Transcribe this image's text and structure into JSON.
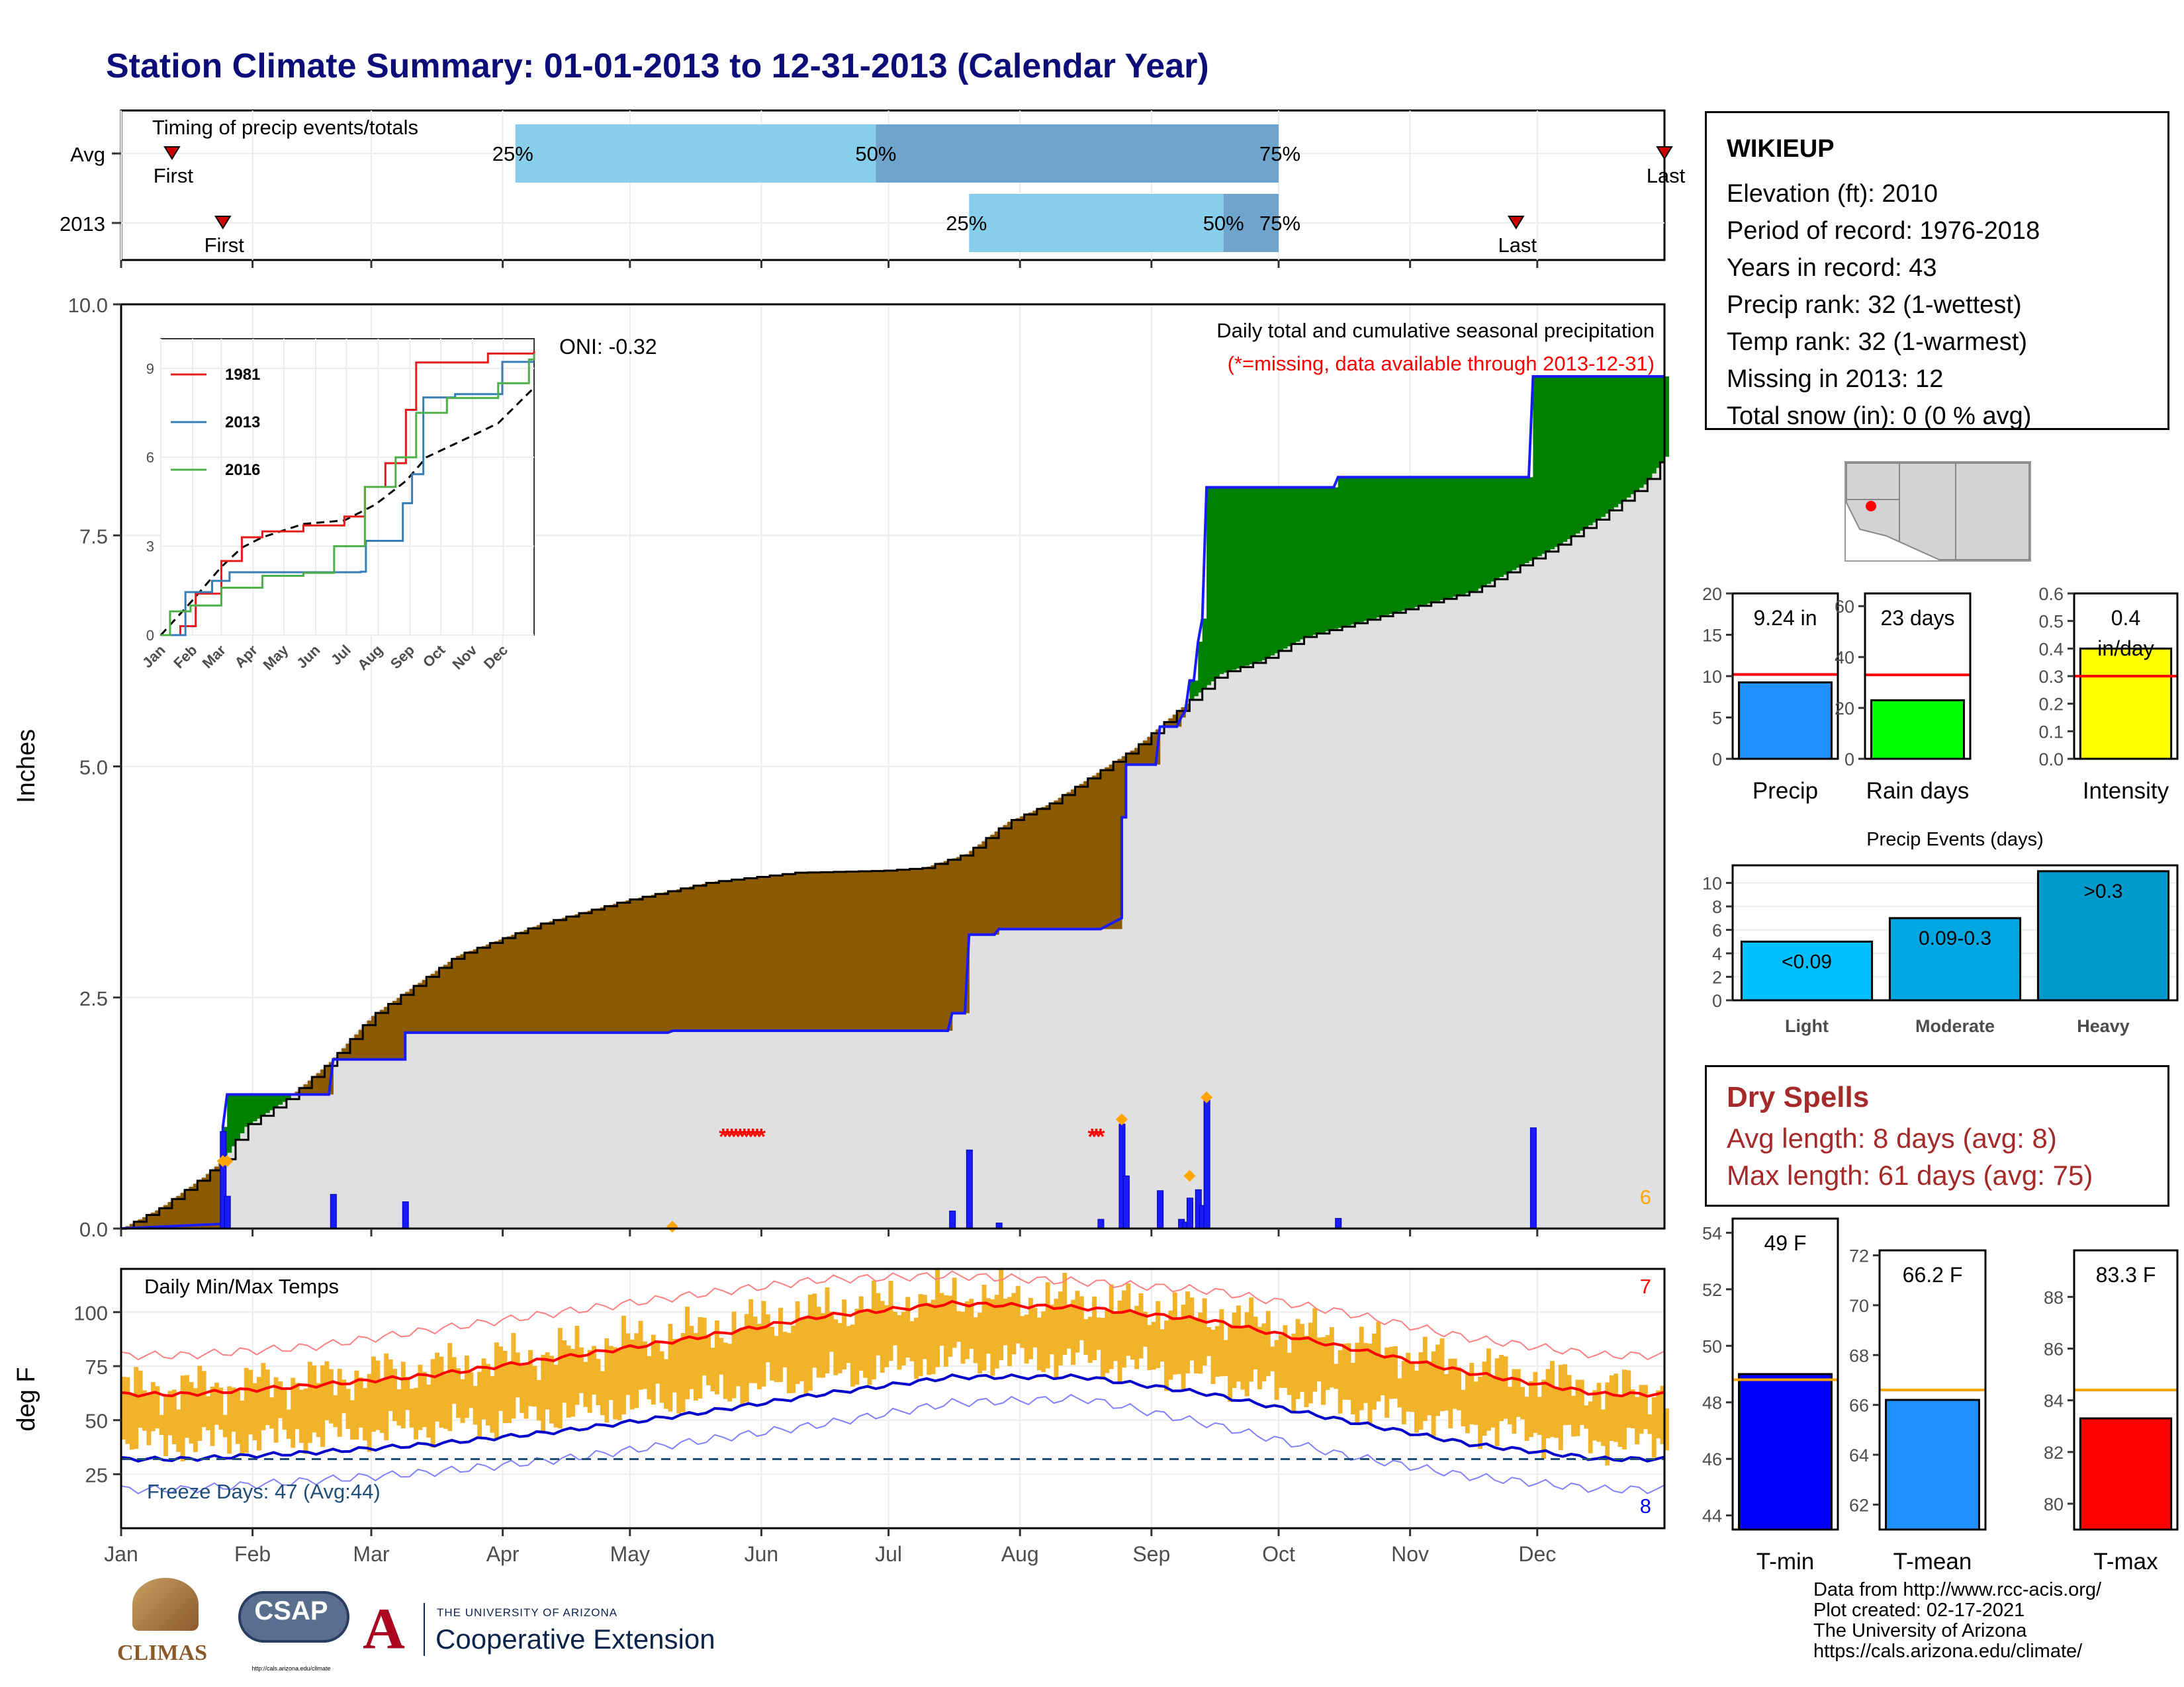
{
  "title": "Station Climate Summary: 01-01-2013 to 12-31-2013 (Calendar Year)",
  "colors": {
    "title": "#0d0d7a",
    "precip_blue": "#1a1aff",
    "green": "#008000",
    "brown": "#8b5a00",
    "normal_gray": "#e0e0e0",
    "light_blue": "#87ceeb",
    "steel_blue": "#6fa5cc",
    "temp_bar": "#f0b32a",
    "avg_max": "#ff0000",
    "avg_min": "#0000cc"
  },
  "station": {
    "name": "WIKIEUP",
    "lines": [
      "Elevation (ft): 2010",
      "Period of record: 1976-2018",
      "Years in record: 43",
      "Precip rank: 32 (1-wettest)",
      "Temp rank: 32 (1-warmest)",
      "Missing in 2013: 12",
      "Total snow (in): 0 (0 % avg)"
    ]
  },
  "timing": {
    "title": "Timing of precip events/totals",
    "rows": [
      {
        "label": "Avg",
        "first_doy": 13,
        "p25_doy": 94,
        "p50_doy": 179,
        "p75_doy": 274,
        "last_doy": 365,
        "first_label": "First",
        "last_label": "Last",
        "p25_label": "25%",
        "p50_label": "50%",
        "p75_label": "75%"
      },
      {
        "label": "2013",
        "first_doy": 25,
        "p25_doy": 201,
        "p50_doy": 261,
        "p75_doy": 274,
        "last_doy": 330,
        "first_label": "First",
        "last_label": "Last",
        "p25_label": "25%",
        "p50_label": "50%",
        "p75_label": "75%"
      }
    ]
  },
  "chart_data": [
    {
      "type": "area",
      "title": "Daily total and cumulative seasonal precipitation",
      "subtitle": "(*=missing, data available through 2013-12-31)",
      "ylabel": "Inches",
      "ylim": [
        0,
        10
      ],
      "yticks": [
        0.0,
        2.5,
        5.0,
        7.5,
        10.0
      ],
      "ytick_labels": [
        "0.0",
        "2.5",
        "5.0",
        "7.5",
        "10.0"
      ],
      "oni_label": "ONI: -0.32",
      "corner_count": "6",
      "months": [
        "Jan",
        "Feb",
        "Mar",
        "Apr",
        "May",
        "Jun",
        "Jul",
        "Aug",
        "Sep",
        "Oct",
        "Nov",
        "Dec"
      ],
      "cumulative_2013": [
        [
          1,
          0
        ],
        [
          25,
          0.05
        ],
        [
          25,
          1.1
        ],
        [
          26,
          1.45
        ],
        [
          50,
          1.45
        ],
        [
          51,
          1.83
        ],
        [
          68,
          1.83
        ],
        [
          68,
          2.12
        ],
        [
          130,
          2.12
        ],
        [
          131,
          2.14
        ],
        [
          196,
          2.14
        ],
        [
          197,
          2.33
        ],
        [
          200,
          2.33
        ],
        [
          201,
          3.18
        ],
        [
          207,
          3.18
        ],
        [
          208,
          3.24
        ],
        [
          232,
          3.24
        ],
        [
          237,
          3.36
        ],
        [
          237,
          4.45
        ],
        [
          238,
          4.45
        ],
        [
          238,
          5.02
        ],
        [
          245,
          5.02
        ],
        [
          246,
          5.43
        ],
        [
          250,
          5.43
        ],
        [
          251,
          5.53
        ],
        [
          252,
          5.6
        ],
        [
          253,
          5.93
        ],
        [
          254,
          5.93
        ],
        [
          255,
          6.35
        ],
        [
          256,
          6.6
        ],
        [
          257,
          8.02
        ],
        [
          287,
          8.02
        ],
        [
          288,
          8.13
        ],
        [
          333,
          8.13
        ],
        [
          334,
          9.22
        ],
        [
          365,
          9.22
        ]
      ],
      "cumulative_avg": [
        [
          1,
          0
        ],
        [
          10,
          0.22
        ],
        [
          20,
          0.55
        ],
        [
          25,
          0.75
        ],
        [
          30,
          1.1
        ],
        [
          40,
          1.4
        ],
        [
          50,
          1.8
        ],
        [
          60,
          2.3
        ],
        [
          80,
          2.95
        ],
        [
          100,
          3.3
        ],
        [
          120,
          3.55
        ],
        [
          140,
          3.75
        ],
        [
          160,
          3.85
        ],
        [
          180,
          3.87
        ],
        [
          190,
          3.9
        ],
        [
          200,
          4.05
        ],
        [
          210,
          4.4
        ],
        [
          220,
          4.6
        ],
        [
          230,
          4.9
        ],
        [
          240,
          5.2
        ],
        [
          250,
          5.6
        ],
        [
          260,
          6.0
        ],
        [
          270,
          6.15
        ],
        [
          280,
          6.4
        ],
        [
          300,
          6.65
        ],
        [
          320,
          6.9
        ],
        [
          330,
          7.15
        ],
        [
          340,
          7.4
        ],
        [
          350,
          7.7
        ],
        [
          360,
          8.05
        ],
        [
          365,
          8.35
        ]
      ],
      "daily_2013": [
        [
          25,
          1.05
        ],
        [
          26,
          0.35
        ],
        [
          51,
          0.37
        ],
        [
          68,
          0.29
        ],
        [
          131,
          0.02
        ],
        [
          197,
          0.19
        ],
        [
          201,
          0.85
        ],
        [
          208,
          0.06
        ],
        [
          232,
          0.1
        ],
        [
          237,
          1.13
        ],
        [
          238,
          0.57
        ],
        [
          246,
          0.41
        ],
        [
          251,
          0.1
        ],
        [
          252,
          0.07
        ],
        [
          253,
          0.33
        ],
        [
          255,
          0.42
        ],
        [
          256,
          0.25
        ],
        [
          257,
          1.42
        ],
        [
          288,
          0.11
        ],
        [
          334,
          1.09
        ]
      ],
      "missing_markers": [
        [
          143,
          1.0
        ],
        [
          144,
          1.0
        ],
        [
          145,
          1.0
        ],
        [
          146,
          1.0
        ],
        [
          147,
          1.0
        ],
        [
          148,
          1.0
        ],
        [
          149,
          1.0
        ],
        [
          150,
          1.0
        ],
        [
          151,
          1.0
        ],
        [
          152,
          1.0
        ],
        [
          230,
          1.0
        ],
        [
          231,
          1.0
        ],
        [
          232,
          1.0
        ]
      ],
      "orange_markers": [
        [
          25,
          0.73
        ],
        [
          26,
          0.73
        ],
        [
          131,
          0.02
        ],
        [
          237,
          1.18
        ],
        [
          253,
          0.57
        ],
        [
          257,
          1.42
        ]
      ]
    },
    {
      "type": "line",
      "title": "",
      "xlim": [
        "Jan",
        "Dec"
      ],
      "ylim": [
        0,
        10
      ],
      "yticks": [
        0,
        3,
        6,
        9
      ],
      "ytick_labels": [
        "0",
        "3",
        "6",
        "9"
      ],
      "months": [
        "Jan",
        "Feb",
        "Mar",
        "Apr",
        "May",
        "Jun",
        "Jul",
        "Aug",
        "Sep",
        "Oct",
        "Nov",
        "Dec"
      ],
      "series": [
        {
          "name": "1981",
          "color": "#e41a1c",
          "values": [
            [
              1,
              0
            ],
            [
              20,
              0.3
            ],
            [
              35,
              1.4
            ],
            [
              60,
              2.5
            ],
            [
              80,
              3.3
            ],
            [
              100,
              3.5
            ],
            [
              140,
              3.7
            ],
            [
              180,
              4.0
            ],
            [
              200,
              5.0
            ],
            [
              220,
              5.8
            ],
            [
              240,
              7.6
            ],
            [
              250,
              9.2
            ],
            [
              300,
              9.2
            ],
            [
              320,
              9.5
            ],
            [
              365,
              9.6
            ]
          ]
        },
        {
          "name": "2013",
          "color": "#377eb8",
          "values": [
            [
              1,
              0
            ],
            [
              25,
              1.45
            ],
            [
              51,
              1.83
            ],
            [
              68,
              2.12
            ],
            [
              196,
              2.14
            ],
            [
              201,
              3.18
            ],
            [
              237,
              4.45
            ],
            [
              246,
              5.43
            ],
            [
              257,
              8.02
            ],
            [
              288,
              8.13
            ],
            [
              334,
              9.22
            ],
            [
              365,
              9.22
            ]
          ]
        },
        {
          "name": "2016",
          "color": "#4daf4a",
          "values": [
            [
              1,
              0
            ],
            [
              10,
              0.8
            ],
            [
              30,
              1.0
            ],
            [
              60,
              1.6
            ],
            [
              100,
              2.0
            ],
            [
              140,
              2.1
            ],
            [
              170,
              3.0
            ],
            [
              200,
              5.0
            ],
            [
              230,
              6.0
            ],
            [
              250,
              7.5
            ],
            [
              280,
              8.0
            ],
            [
              330,
              8.5
            ],
            [
              360,
              9.3
            ],
            [
              365,
              9.5
            ]
          ]
        }
      ],
      "avg_line": [
        [
          1,
          0
        ],
        [
          30,
          1.1
        ],
        [
          60,
          2.3
        ],
        [
          80,
          2.95
        ],
        [
          100,
          3.3
        ],
        [
          140,
          3.75
        ],
        [
          180,
          3.87
        ],
        [
          210,
          4.4
        ],
        [
          240,
          5.2
        ],
        [
          260,
          6.0
        ],
        [
          300,
          6.65
        ],
        [
          330,
          7.15
        ],
        [
          365,
          8.35
        ]
      ]
    },
    {
      "type": "bar",
      "title": "Daily Min/Max Temps",
      "ylabel": "deg F",
      "ylim": [
        0,
        120
      ],
      "yticks": [
        25,
        50,
        75,
        100
      ],
      "ytick_labels": [
        "25",
        "50",
        "75",
        "100"
      ],
      "months": [
        "Jan",
        "Feb",
        "Mar",
        "Apr",
        "May",
        "Jun",
        "Jul",
        "Aug",
        "Sep",
        "Oct",
        "Nov",
        "Dec"
      ],
      "freeze_label": "Freeze Days: 47 (Avg:44)",
      "freeze_line": 32,
      "top_count": "7",
      "bottom_count": "8",
      "avg_max_by_month": [
        62,
        66,
        71,
        79,
        88,
        98,
        104,
        102,
        96,
        84,
        72,
        62
      ],
      "avg_min_by_month": [
        32,
        35,
        39,
        45,
        53,
        62,
        70,
        70,
        62,
        50,
        39,
        32
      ],
      "record_max_by_month": [
        80,
        84,
        92,
        100,
        108,
        115,
        117,
        114,
        110,
        100,
        88,
        80
      ],
      "record_min_by_month": [
        18,
        22,
        26,
        32,
        40,
        48,
        58,
        60,
        48,
        34,
        24,
        18
      ]
    },
    {
      "type": "bar",
      "title": "",
      "categories": [
        "Precip",
        "Rain days",
        "Intensity"
      ],
      "panels": [
        {
          "category": "Precip",
          "value": 9.24,
          "avg": 10.2,
          "label": "9.24 in",
          "ylim": [
            0,
            20
          ],
          "yticks": [
            0,
            5,
            10,
            15,
            20
          ],
          "ytick_labels": [
            "0",
            "5",
            "10",
            "15",
            "20"
          ],
          "color": "#1e90ff"
        },
        {
          "category": "Rain days",
          "value": 23,
          "avg": 33,
          "label": "23 days",
          "ylim": [
            0,
            65
          ],
          "yticks": [
            0,
            20,
            40,
            60
          ],
          "ytick_labels": [
            "0",
            "20",
            "40",
            "60"
          ],
          "color": "#00ff00"
        },
        {
          "category": "Intensity",
          "value": 0.4,
          "avg": 0.3,
          "label": "0.4",
          "label2": "in/day",
          "ylim": [
            0,
            0.6
          ],
          "yticks": [
            0,
            0.1,
            0.2,
            0.3,
            0.4,
            0.5,
            0.6
          ],
          "ytick_labels": [
            "0.0",
            "0.1",
            "0.2",
            "0.3",
            "0.4",
            "0.5",
            "0.6"
          ],
          "color": "#ffff00"
        }
      ]
    },
    {
      "type": "bar",
      "title": "Precip Events (days)",
      "categories": [
        "Light",
        "Moderate",
        "Heavy"
      ],
      "values": [
        5,
        7,
        11
      ],
      "bar_labels": [
        "<0.09",
        "0.09-0.3",
        ">0.3"
      ],
      "colors": [
        "#00bfff",
        "#00a6e0",
        "#0099cc"
      ],
      "ylim": [
        0,
        11.5
      ],
      "yticks": [
        0,
        2,
        4,
        6,
        8,
        10
      ],
      "ytick_labels": [
        "0",
        "2",
        "4",
        "6",
        "8",
        "10"
      ]
    },
    {
      "type": "bar",
      "title": "",
      "categories": [
        "T-min",
        "T-mean",
        "T-max"
      ],
      "panels": [
        {
          "category": "T-min",
          "value": 49,
          "avg": 48.8,
          "label": "49 F",
          "ylim": [
            43.5,
            54.5
          ],
          "yticks": [
            44,
            46,
            48,
            50,
            52,
            54
          ],
          "ytick_labels": [
            "44",
            "46",
            "48",
            "50",
            "52",
            "54"
          ],
          "color": "#0000ff"
        },
        {
          "category": "T-mean",
          "value": 66.2,
          "avg": 66.6,
          "label": "66.2 F",
          "ylim": [
            61,
            72.2
          ],
          "yticks": [
            62,
            64,
            66,
            68,
            70,
            72
          ],
          "ytick_labels": [
            "62",
            "64",
            "66",
            "68",
            "70",
            "72"
          ],
          "color": "#1e90ff"
        },
        {
          "category": "T-max",
          "value": 83.3,
          "avg": 84.4,
          "label": "83.3 F",
          "ylim": [
            79,
            89.8
          ],
          "yticks": [
            80,
            82,
            84,
            86,
            88
          ],
          "ytick_labels": [
            "80",
            "82",
            "84",
            "86",
            "88"
          ],
          "color": "#ff0000"
        }
      ]
    }
  ],
  "dry_spells": {
    "title": "Dry Spells",
    "avg_line": "Avg length: 8 days (avg: 8)",
    "max_line": "Max length: 61 days (avg: 75)"
  },
  "footer": {
    "lines": [
      "Data from http://www.rcc-acis.org/",
      "Plot created: 02-17-2021",
      "The University of Arizona",
      "https://cals.arizona.edu/climate/"
    ]
  },
  "logos": {
    "climas": "CLIMAS",
    "csap": "CSAP",
    "csap_url": "http://cals.arizona.edu/climate",
    "ua_small": "THE UNIVERSITY OF ARIZONA",
    "ua_big": "Cooperative Extension"
  }
}
